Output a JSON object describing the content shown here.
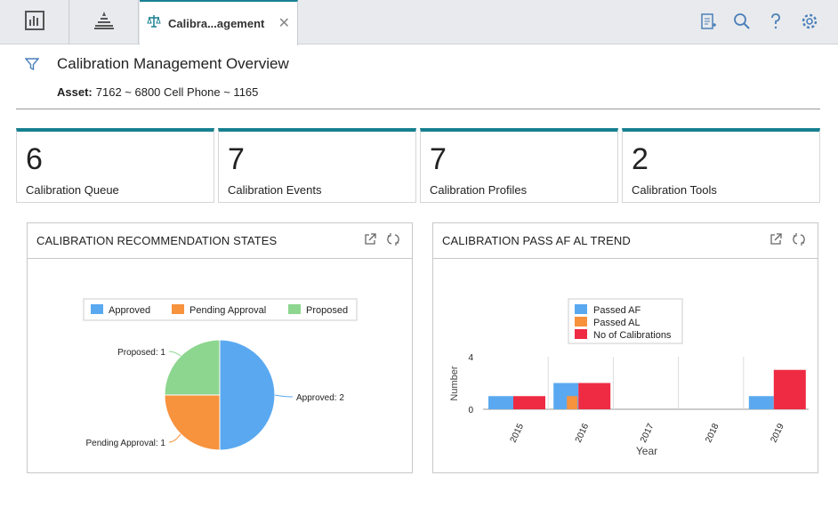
{
  "tabs": {
    "active_label": "Calibra...agement"
  },
  "page": {
    "title": "Calibration Management Overview",
    "asset_label": "Asset:",
    "asset_value": "7162 ~ 6800 Cell Phone ~ 1165"
  },
  "kpis": [
    {
      "value": "6",
      "label": "Calibration Queue"
    },
    {
      "value": "7",
      "label": "Calibration Events"
    },
    {
      "value": "7",
      "label": "Calibration Profiles"
    },
    {
      "value": "2",
      "label": "Calibration Tools"
    }
  ],
  "colors": {
    "accent": "#16808f",
    "blue": "#5aa9f0",
    "orange": "#f7923d",
    "green": "#8dd68f",
    "red": "#ee2b43"
  },
  "chart_data": [
    {
      "type": "pie",
      "title": "CALIBRATION RECOMMENDATION STATES",
      "categories": [
        "Approved",
        "Pending Approval",
        "Proposed"
      ],
      "values": [
        2,
        1,
        1
      ],
      "data_labels": [
        "Approved: 2",
        "Pending Approval: 1",
        "Proposed: 1"
      ],
      "legend": "top"
    },
    {
      "type": "bar",
      "title": "CALIBRATION PASS AF AL TREND",
      "categories": [
        "2015",
        "2016",
        "2017",
        "2018",
        "2019"
      ],
      "series": [
        {
          "name": "Passed AF",
          "values": [
            1,
            2,
            0,
            0,
            1
          ]
        },
        {
          "name": "Passed AL",
          "values": [
            0,
            1,
            0,
            0,
            0
          ]
        },
        {
          "name": "No of Calibrations",
          "values": [
            1,
            2,
            0,
            0,
            3
          ]
        }
      ],
      "xlabel": "Year",
      "ylabel": "Number",
      "yticks": [
        "4",
        "0"
      ],
      "legend": "top"
    }
  ]
}
